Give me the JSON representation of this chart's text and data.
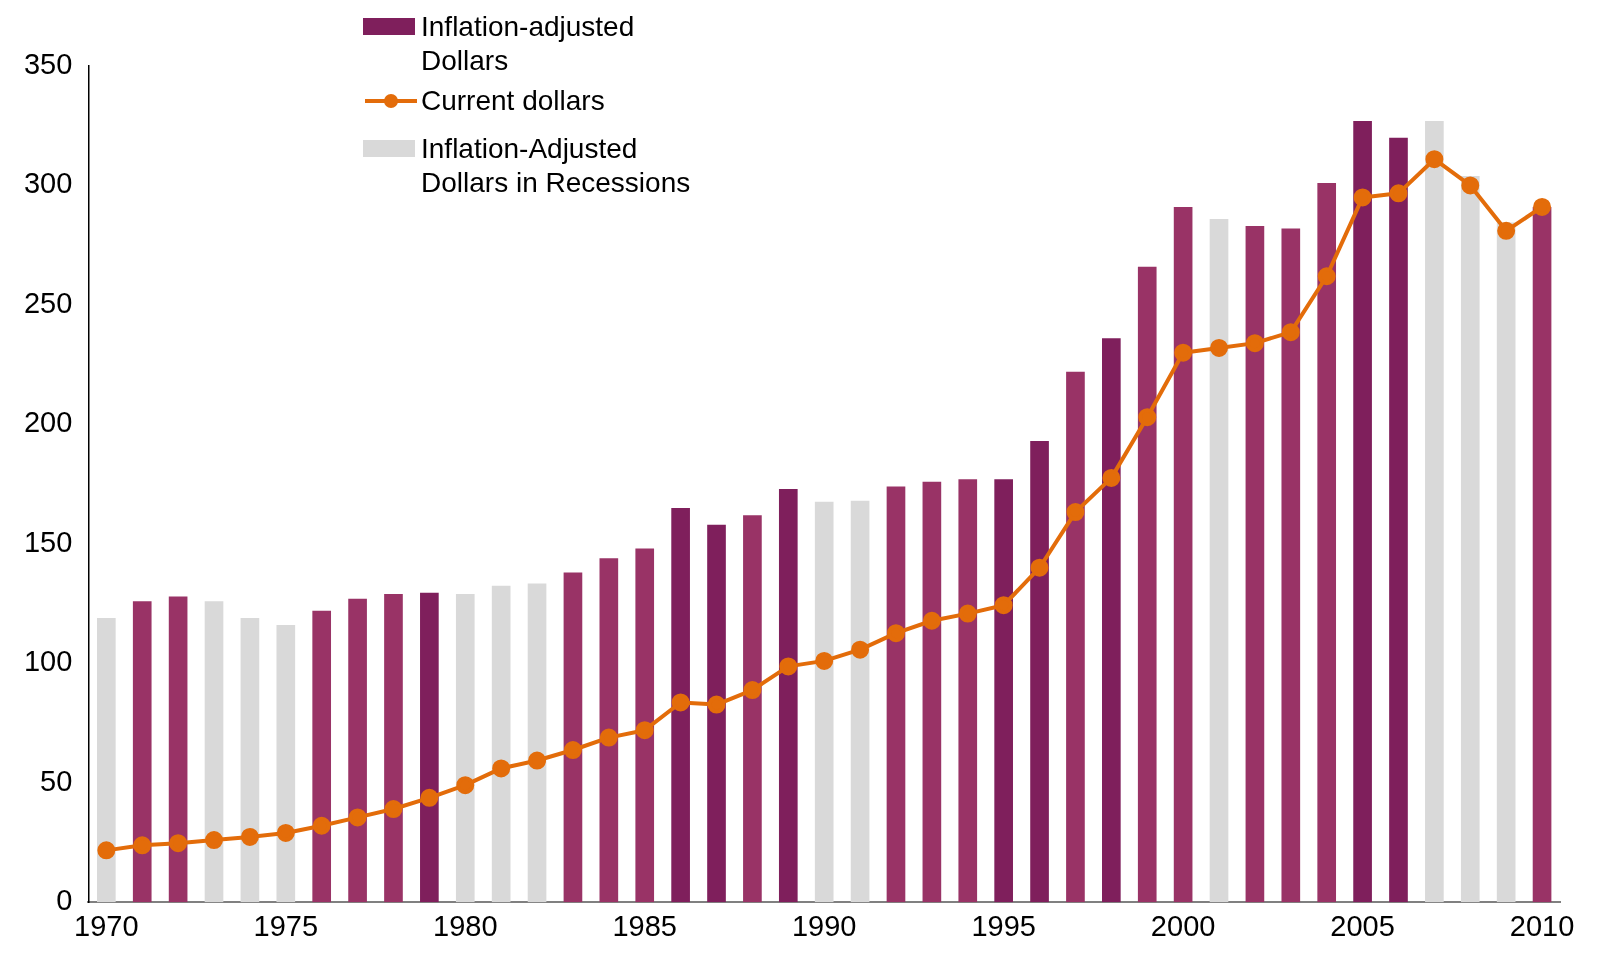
{
  "chart_data": {
    "type": "bar",
    "categories": [
      "1970",
      null,
      null,
      null,
      null,
      "1975",
      null,
      null,
      null,
      null,
      "1980",
      null,
      null,
      null,
      null,
      "1985",
      null,
      null,
      null,
      null,
      "1990",
      null,
      null,
      null,
      null,
      "1995",
      null,
      null,
      null,
      null,
      "2000",
      null,
      null,
      null,
      null,
      "2005",
      null,
      null,
      null,
      null,
      "2010"
    ],
    "series": [
      {
        "name": "Inflation-adjusted Dollars",
        "color": "#7f1f5c",
        "colors": [
          null,
          "#993366",
          "#993366",
          null,
          null,
          null,
          "#993366",
          "#993366",
          "#993366",
          "#7f1f5c",
          null,
          null,
          null,
          "#993366",
          "#993366",
          "#993366",
          "#7f1f5c",
          "#7f1f5c",
          "#993366",
          "#7f1f5c",
          null,
          null,
          "#993366",
          "#993366",
          "#993366",
          "#7f1f5c",
          "#7f1f5c",
          "#993366",
          "#7f1f5c",
          "#993366",
          "#993366",
          null,
          "#993366",
          "#993366",
          "#993366",
          "#7f1f5c",
          "#7f1f5c",
          null,
          null,
          null,
          "#993366"
        ],
        "values": [
          null,
          126,
          128,
          null,
          null,
          null,
          122,
          127,
          129,
          129.5,
          null,
          null,
          null,
          138,
          144,
          148,
          165,
          158,
          162,
          173,
          null,
          null,
          174,
          176,
          177,
          177,
          193,
          222,
          236,
          266,
          291,
          null,
          283,
          282,
          301,
          327,
          320,
          null,
          null,
          null,
          291
        ]
      },
      {
        "name": "Current dollars",
        "type": "line",
        "color": "#e36c0a",
        "values": [
          21.7,
          23.8,
          24.7,
          26,
          27.3,
          29,
          32,
          35.5,
          39,
          43.7,
          49,
          56,
          59.3,
          63.7,
          68.9,
          72,
          83.6,
          82.7,
          88.8,
          98.7,
          101,
          105.7,
          112.6,
          117.8,
          120.8,
          124.3,
          140,
          163.3,
          177.6,
          203,
          230,
          232,
          234,
          238.6,
          262,
          295,
          296.7,
          311,
          300,
          281,
          291
        ]
      },
      {
        "name": "Inflation-Adjusted Dollars in Recessions",
        "color": "#d9d9d9",
        "values": [
          119,
          null,
          null,
          126,
          119,
          116,
          null,
          null,
          null,
          null,
          129,
          132.5,
          133.4,
          null,
          null,
          null,
          null,
          null,
          null,
          null,
          167.6,
          168,
          null,
          null,
          null,
          null,
          null,
          null,
          null,
          null,
          null,
          286,
          null,
          null,
          null,
          null,
          null,
          327,
          304,
          284.5,
          null
        ]
      }
    ],
    "ylim": [
      0,
      350
    ],
    "yticks": [
      0,
      50,
      100,
      150,
      200,
      250,
      300,
      350
    ],
    "legend": "top",
    "marker": "circle"
  }
}
